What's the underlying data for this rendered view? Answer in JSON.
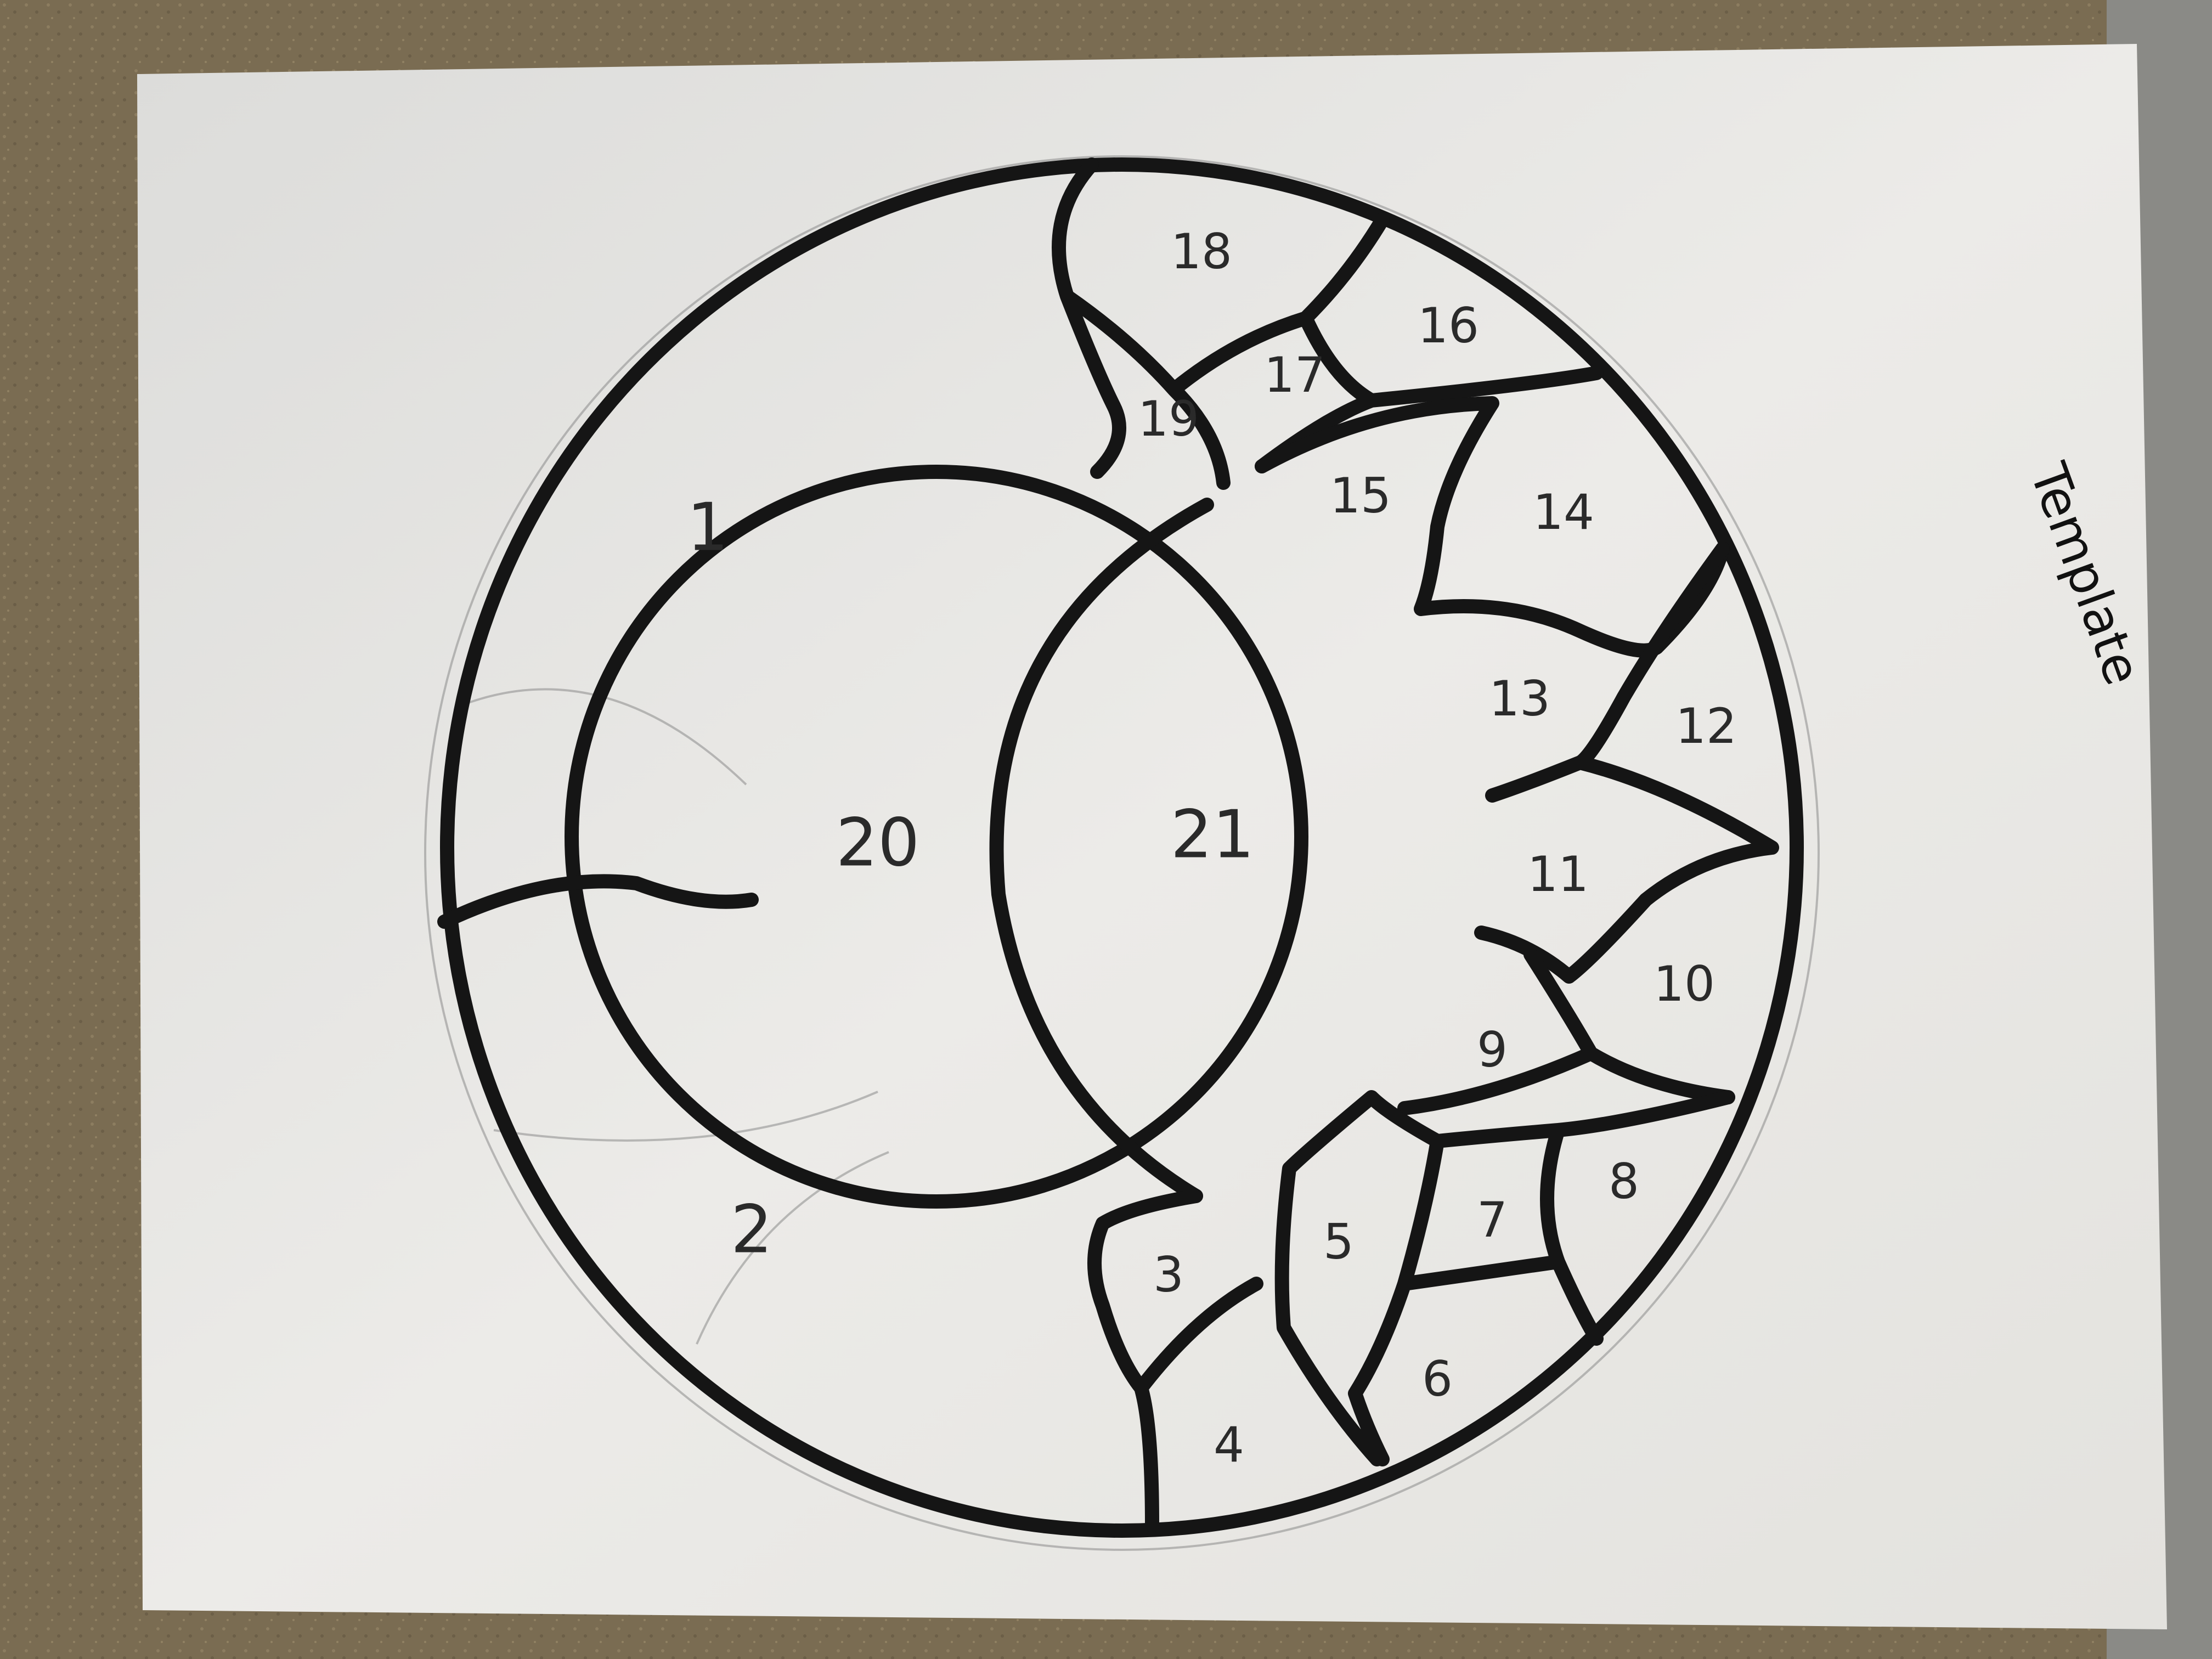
{
  "template_note": "Template",
  "pieces": [
    "1",
    "2",
    "3",
    "4",
    "5",
    "6",
    "7",
    "8",
    "9",
    "10",
    "11",
    "12",
    "13",
    "14",
    "15",
    "16",
    "17",
    "18",
    "19",
    "20",
    "21"
  ],
  "colors": {
    "paper": "#e9e8e4",
    "ink": "#151515",
    "background": "#7d6f55"
  }
}
